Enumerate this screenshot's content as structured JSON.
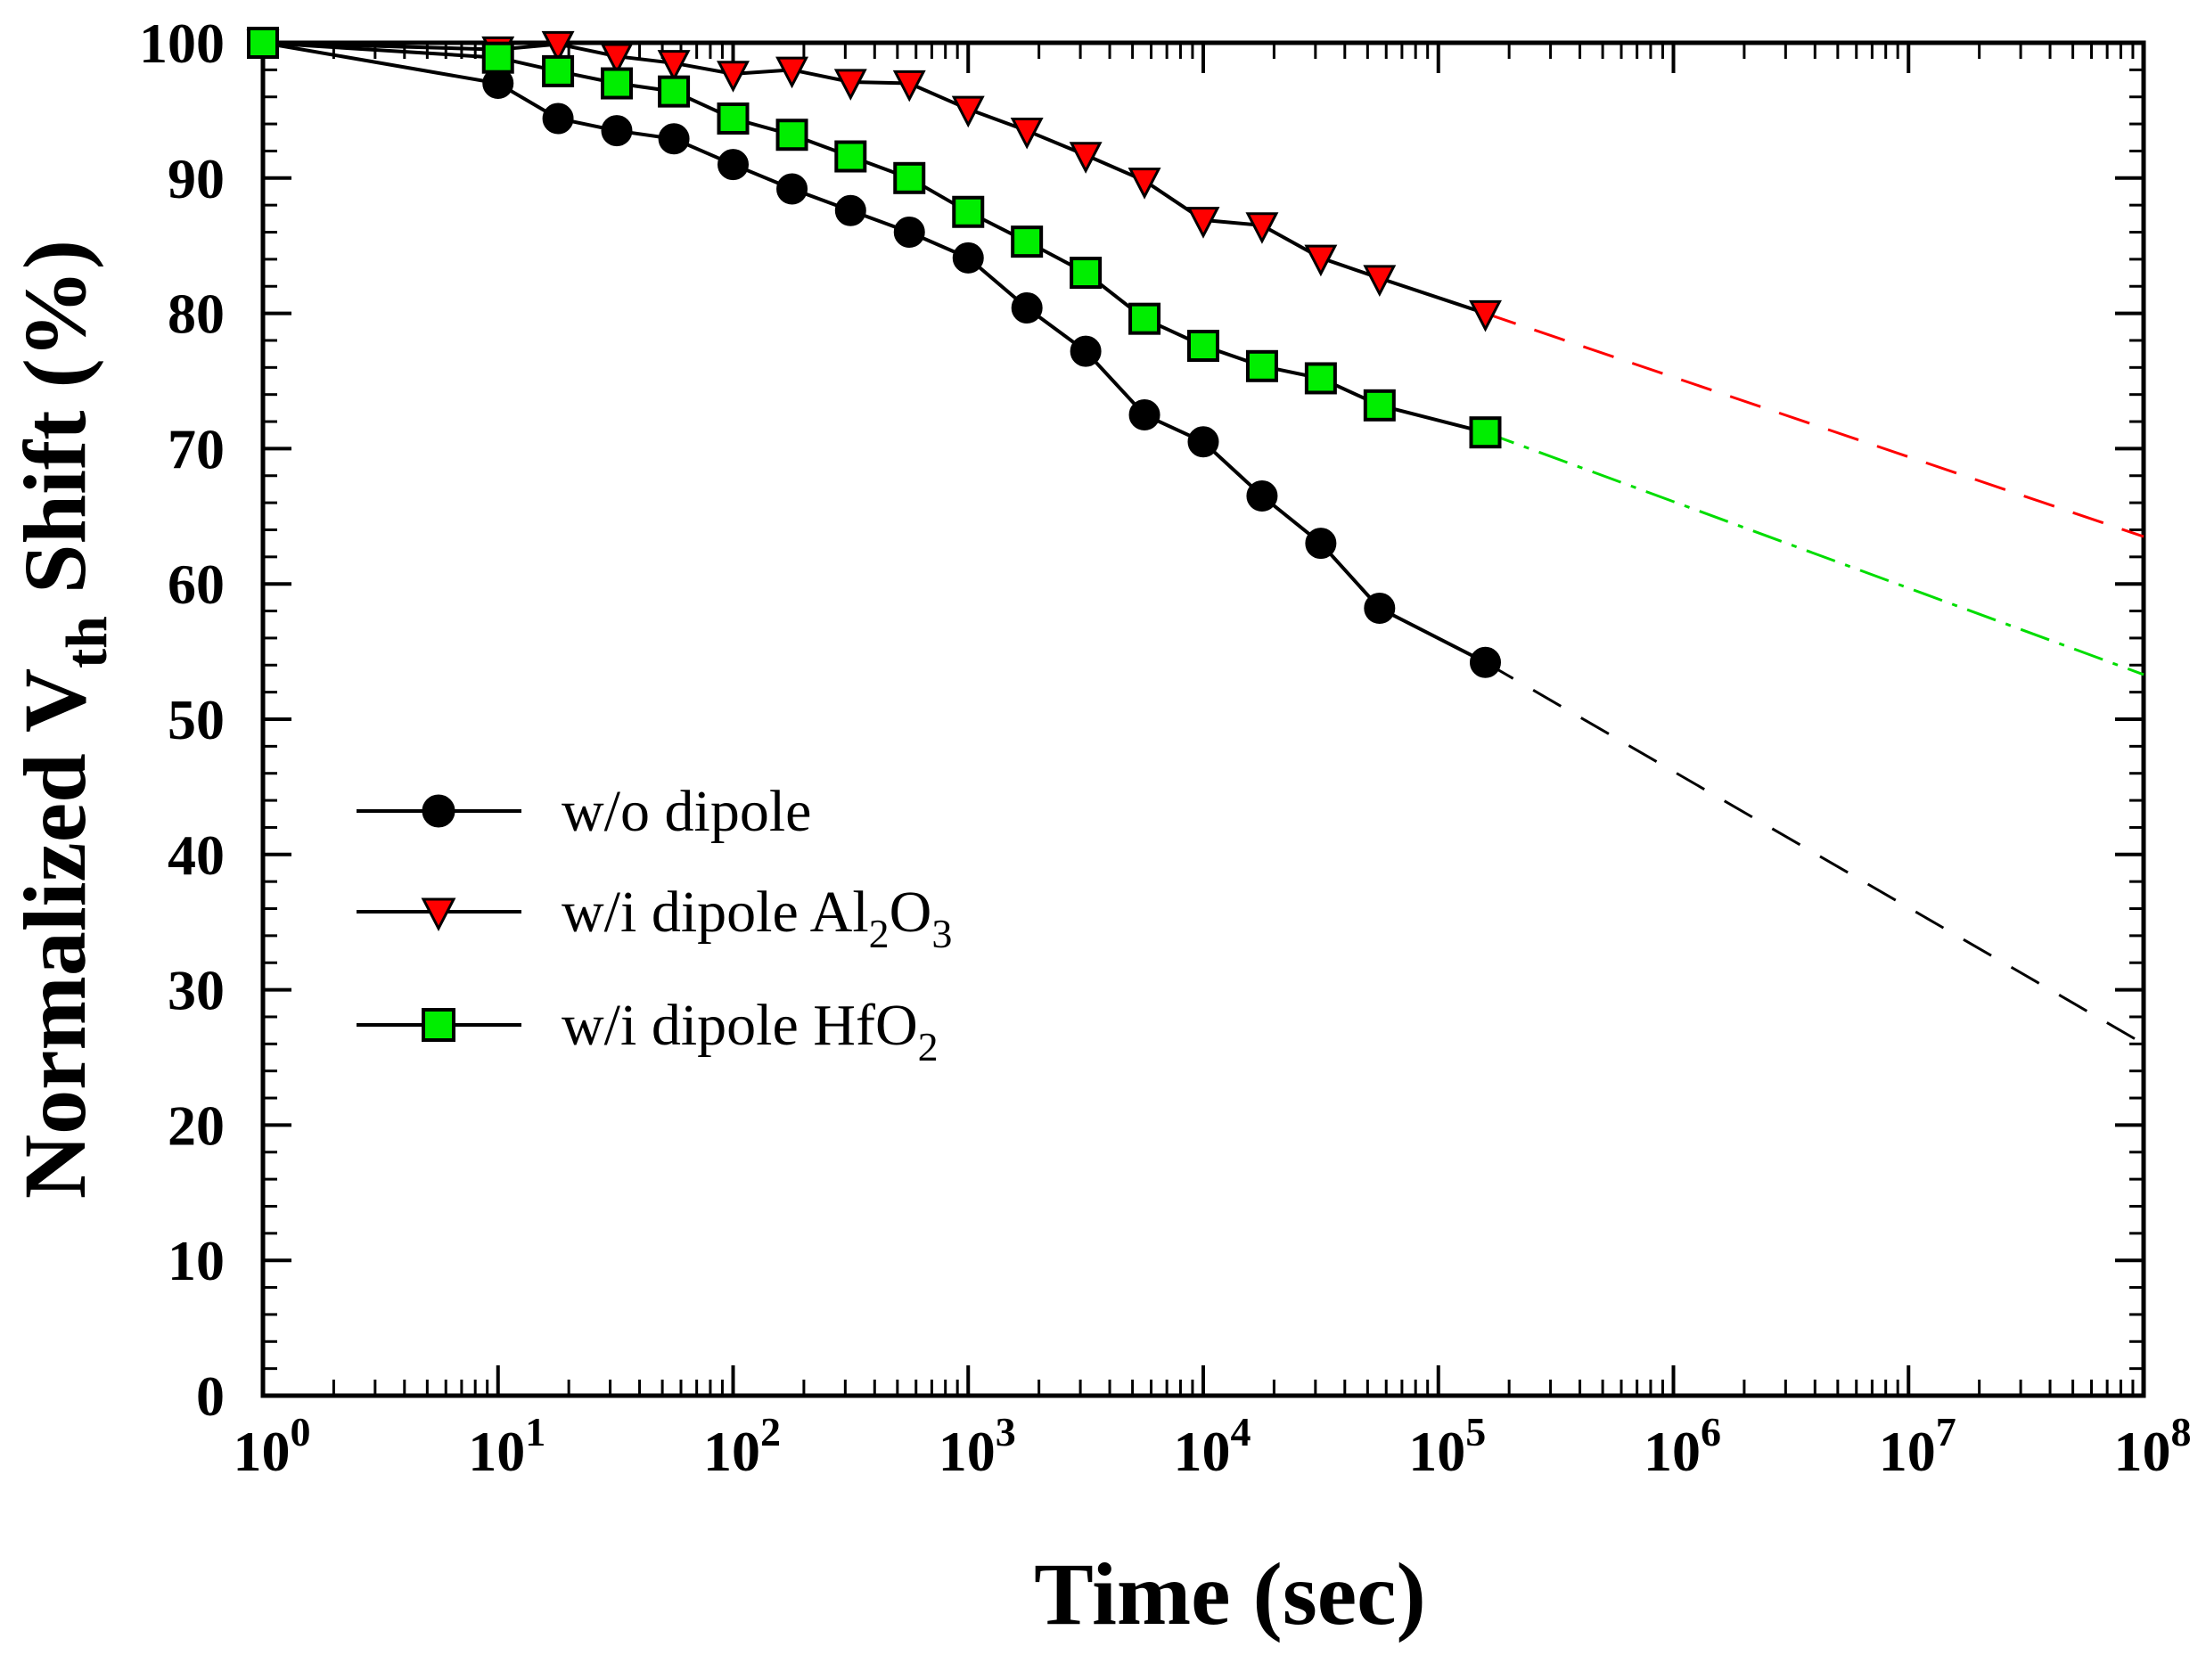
{
  "chart_data": {
    "type": "line",
    "xscale": "log",
    "xlabel": "Time (sec)",
    "ylabel": {
      "prefix": "Normalized V",
      "subscript": "th",
      "suffix": " Shift (%)"
    },
    "xlim": [
      1,
      100000000
    ],
    "ylim": [
      0,
      100
    ],
    "x_ticks": [
      {
        "base": "10",
        "exp": "0"
      },
      {
        "base": "10",
        "exp": "1"
      },
      {
        "base": "10",
        "exp": "2"
      },
      {
        "base": "10",
        "exp": "3"
      },
      {
        "base": "10",
        "exp": "4"
      },
      {
        "base": "10",
        "exp": "5"
      },
      {
        "base": "10",
        "exp": "6"
      },
      {
        "base": "10",
        "exp": "7"
      },
      {
        "base": "10",
        "exp": "8"
      }
    ],
    "y_ticks": [
      "0",
      "10",
      "20",
      "30",
      "40",
      "50",
      "60",
      "70",
      "80",
      "90",
      "100"
    ],
    "series": [
      {
        "name": "w/o dipole",
        "legend": [
          {
            "t": "w/o dipole"
          }
        ],
        "marker": "circle",
        "color": "#000000",
        "fit_color": "#000000",
        "fit_dash": "36 26",
        "x": [
          1,
          10,
          18,
          32,
          56,
          100,
          178,
          316,
          562,
          1000,
          1778,
          3162,
          5623,
          10000,
          17783,
          31623,
          56234,
          158489
        ],
        "y": [
          100,
          97.0,
          94.4,
          93.5,
          92.9,
          91.0,
          89.2,
          87.6,
          86.0,
          84.1,
          80.4,
          77.2,
          72.5,
          70.5,
          66.5,
          63.0,
          58.2,
          54.2
        ],
        "fit_y_end": 26.0
      },
      {
        "name": "w/i dipole Al2O3",
        "legend": [
          {
            "t": "w/i dipole Al"
          },
          {
            "t": "2",
            "sub": true
          },
          {
            "t": "O"
          },
          {
            "t": "3",
            "sub": true
          }
        ],
        "marker": "triangle-down",
        "color": "#ff0000",
        "fit_color": "#ff0000",
        "fit_dash": "36 22",
        "x": [
          1,
          10,
          18,
          32,
          56,
          100,
          178,
          316,
          562,
          1000,
          1778,
          3162,
          5623,
          10000,
          17783,
          31623,
          56234,
          158489
        ],
        "y": [
          100,
          99.5,
          99.9,
          99.0,
          98.5,
          97.7,
          98.0,
          97.1,
          97.0,
          95.1,
          93.5,
          91.7,
          89.8,
          86.9,
          86.5,
          84.1,
          82.6,
          80.0
        ],
        "fit_y_end": 63.5
      },
      {
        "name": "w/i dipole HfO2",
        "legend": [
          {
            "t": "w/i dipole HfO"
          },
          {
            "t": "2",
            "sub": true
          }
        ],
        "marker": "square",
        "color": "#00ee00",
        "fit_color": "#00dd00",
        "fit_dash": "34 12 6 12",
        "x": [
          1,
          10,
          18,
          32,
          56,
          100,
          178,
          316,
          562,
          1000,
          1778,
          3162,
          5623,
          10000,
          17783,
          31623,
          56234,
          158489
        ],
        "y": [
          100,
          98.9,
          97.9,
          97.0,
          96.4,
          94.4,
          93.2,
          91.6,
          90.0,
          87.5,
          85.3,
          83.0,
          79.6,
          77.6,
          76.1,
          75.2,
          73.2,
          71.2
        ],
        "fit_y_end": 53.3
      }
    ]
  }
}
